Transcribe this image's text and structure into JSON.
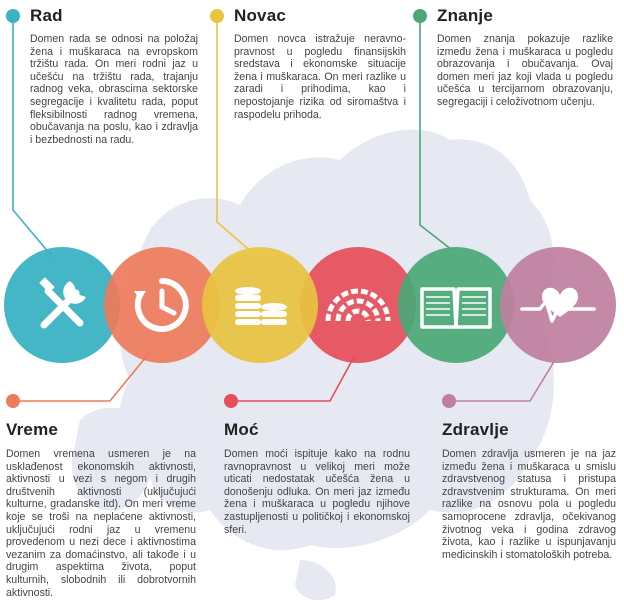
{
  "domains": [
    {
      "key": "rad",
      "title": "Rad",
      "color": "#3bb3c3",
      "icon": "tools-icon",
      "description": "Domen rada se odnosi na položaj žena i muškaraca na evropskom tržištu rada. On meri rodni jaz u učešću na tržištu rada, trajanju radnog veka, obrascima sektorske segregacije i kvalitetu rada, poput fleksibilnosti radnog vremena, obučavanja na poslu, kao i zdravlja i bezbednosti na radu."
    },
    {
      "key": "novac",
      "title": "Novac",
      "color": "#e9c440",
      "icon": "coins-icon",
      "description": "Domen novca istražuje neravno-pravnost u pogledu finansijskih sredstava i ekonomske situacije žena i muškaraca. On meri razlike u zaradi i prihodima, kao i nepostojanje rizika od siromaštva i raspodelu prihoda."
    },
    {
      "key": "znanje",
      "title": "Znanje",
      "color": "#4aa877",
      "icon": "book-icon",
      "description": "Domen znanja pokazuje razlike između žena i muškaraca u pogledu obrazovanja i obučavanja. Ovaj domen meri jaz koji vlada u pogledu učešća u tercijarnom obrazovanju, segregaciji i celoživotnom učenju."
    },
    {
      "key": "vreme",
      "title": "Vreme",
      "color": "#ee7b5c",
      "icon": "clock-icon",
      "description": "Domen vremena usmeren je na usklađenost ekonomskih aktivnosti, aktivnosti u vezi s negom i drugih društvenih aktivnosti (uključujući kulturne, gradanske itd). On meri vreme koje se troši na neplaćene aktivnosti, uključujući rodni jaz u vremenu provedenom u nezi dece i aktivnostima vezanim za domaćinstvo, ali takođe i u drugim aspektima života, poput kulturnih, slobodnih ili dobrotvornih aktivnosti."
    },
    {
      "key": "moc",
      "title": "Moć",
      "color": "#e54e5a",
      "icon": "parliament-icon",
      "description": "Domen moći ispituje kako na rodnu ravnopravnost u velikoj meri može uticati nedostatak učešća žena u donošenju odluka. On meri jaz između žena i muškaraca u pogledu njihove zastupljenosti u političkoj i ekonomskoj sferi."
    },
    {
      "key": "zdravlje",
      "title": "Zdravlje",
      "color": "#c07fa0",
      "icon": "heart-pulse-icon",
      "description": "Domen zdravlja usmeren je na jaz između žena i muškaraca u smislu zdravstvenog statusa i pristupa zdravstvenim strukturama. On meri razlike na osnovu pola u pogledu samoprocene zdravlja, očekivanog životnog veka i godina zdravog života, kao i razlike u ispunjavanju medicinskih i stomatoloških potreba."
    }
  ]
}
